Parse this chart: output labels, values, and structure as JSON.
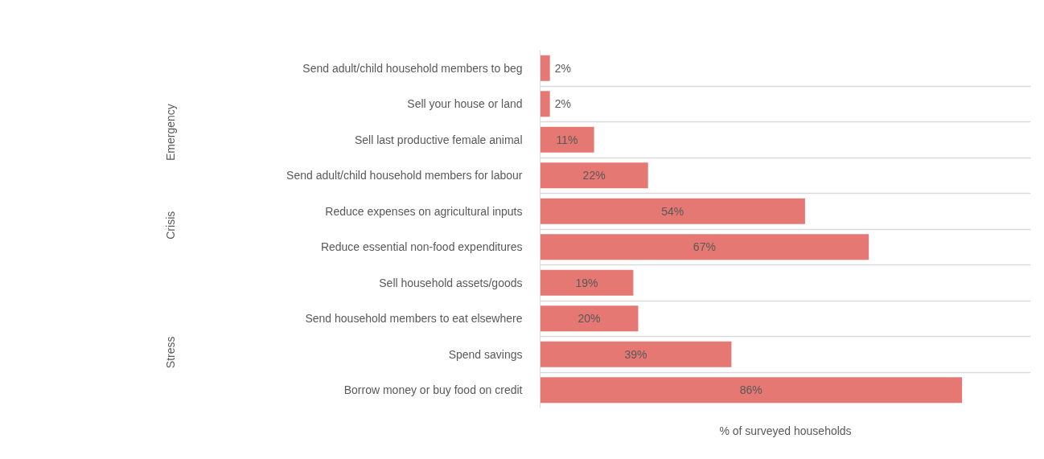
{
  "chart_data": {
    "type": "bar",
    "orientation": "horizontal",
    "categories": [
      "Send adult/child household members to beg",
      "Sell your house or land",
      "Sell last productive female animal",
      "Send adult/child household members for labour",
      "Reduce expenses on agricultural inputs",
      "Reduce essential non-food expenditures",
      "Sell household assets/goods",
      "Send household members to eat elsewhere",
      "Spend savings",
      "Borrow money or buy food on credit"
    ],
    "values": [
      2,
      2,
      11,
      22,
      54,
      67,
      19,
      20,
      39,
      86
    ],
    "value_labels": [
      "2%",
      "2%",
      "11%",
      "22%",
      "54%",
      "67%",
      "19%",
      "20%",
      "39%",
      "86%"
    ],
    "color": "#e57873",
    "xlim": [
      0,
      100
    ],
    "xlabel": "% of surveyed households",
    "tick_labels": "y",
    "grid": "y",
    "annotations": [
      "Emergency",
      "Crisis",
      "Stress"
    ]
  }
}
